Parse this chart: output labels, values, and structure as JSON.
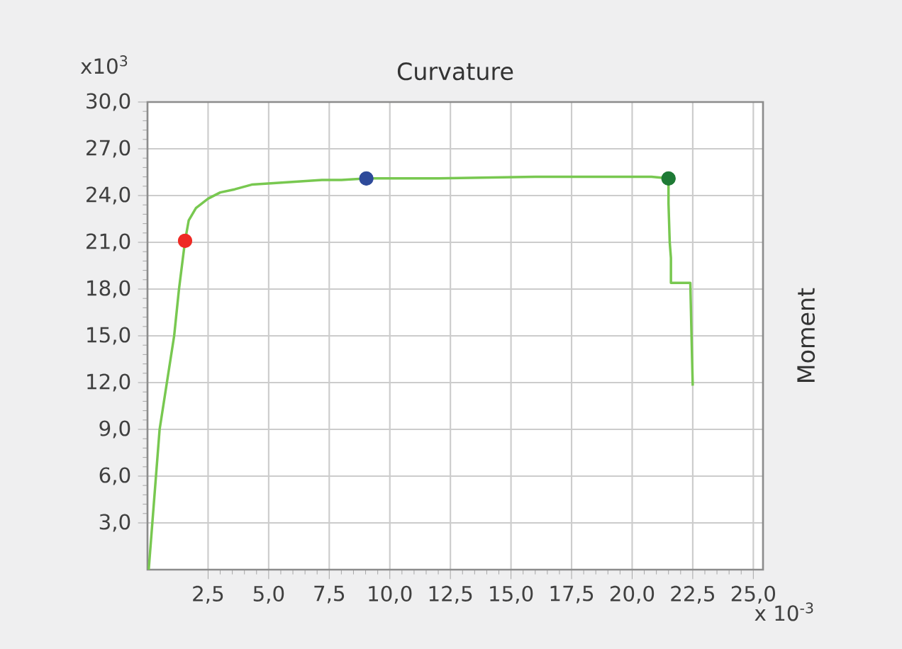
{
  "chart_data": {
    "type": "line",
    "title": "Curvature",
    "ylabel": "Moment",
    "annotations": [
      "x10$^{3}$",
      "x 10$^{-3}$"
    ],
    "xlim": [
      0,
      25.4
    ],
    "ylim": [
      0,
      30
    ],
    "xticks": [
      {
        "value": 2.5,
        "label": "2,5"
      },
      {
        "value": 5,
        "label": "5,0"
      },
      {
        "value": 7.5,
        "label": "7,5"
      },
      {
        "value": 10,
        "label": "10,0"
      },
      {
        "value": 12.5,
        "label": "12,5"
      },
      {
        "value": 15,
        "label": "15,0"
      },
      {
        "value": 17.5,
        "label": "17,5"
      },
      {
        "value": 20,
        "label": "20,0"
      },
      {
        "value": 22.5,
        "label": "22,5"
      },
      {
        "value": 25,
        "label": "25,0"
      }
    ],
    "yticks": [
      {
        "value": 3,
        "label": "3,0"
      },
      {
        "value": 6,
        "label": "6,0"
      },
      {
        "value": 9,
        "label": "9,0"
      },
      {
        "value": 12,
        "label": "12,0"
      },
      {
        "value": 15,
        "label": "15,0"
      },
      {
        "value": 18,
        "label": "18,0"
      },
      {
        "value": 21,
        "label": "21,0"
      },
      {
        "value": 24,
        "label": "24,0"
      },
      {
        "value": 27,
        "label": "27,0"
      },
      {
        "value": 30,
        "label": "30,0"
      }
    ],
    "grid": true,
    "series": [
      {
        "color": "#78c850",
        "x": [
          0.05,
          0.2,
          0.5,
          0.8,
          1.1,
          1.3,
          1.55,
          1.7,
          2.0,
          2.5,
          3.0,
          3.6,
          4.3,
          5.2,
          6.2,
          7.2,
          8.0,
          9.0,
          12.0,
          16.0,
          20.0,
          20.8,
          21.5,
          21.5,
          21.55,
          21.6,
          21.6,
          22.4,
          22.45,
          22.5
        ],
        "values": [
          0,
          3,
          9,
          12,
          15,
          18,
          21.1,
          22.4,
          23.2,
          23.8,
          24.2,
          24.4,
          24.7,
          24.8,
          24.9,
          25.0,
          25.0,
          25.1,
          25.1,
          25.2,
          25.2,
          25.2,
          25.1,
          23.5,
          21.0,
          20.0,
          18.4,
          18.4,
          15.0,
          11.8
        ]
      },
      {
        "type": "scatter",
        "color": "#ee2a24",
        "x": [
          1.55
        ],
        "values": [
          21.1
        ]
      },
      {
        "type": "scatter",
        "color": "#2e4a9a",
        "x": [
          9.03
        ],
        "values": [
          25.1
        ]
      },
      {
        "type": "scatter",
        "color": "#1e7a35",
        "x": [
          21.5
        ],
        "values": [
          25.1
        ]
      }
    ]
  }
}
